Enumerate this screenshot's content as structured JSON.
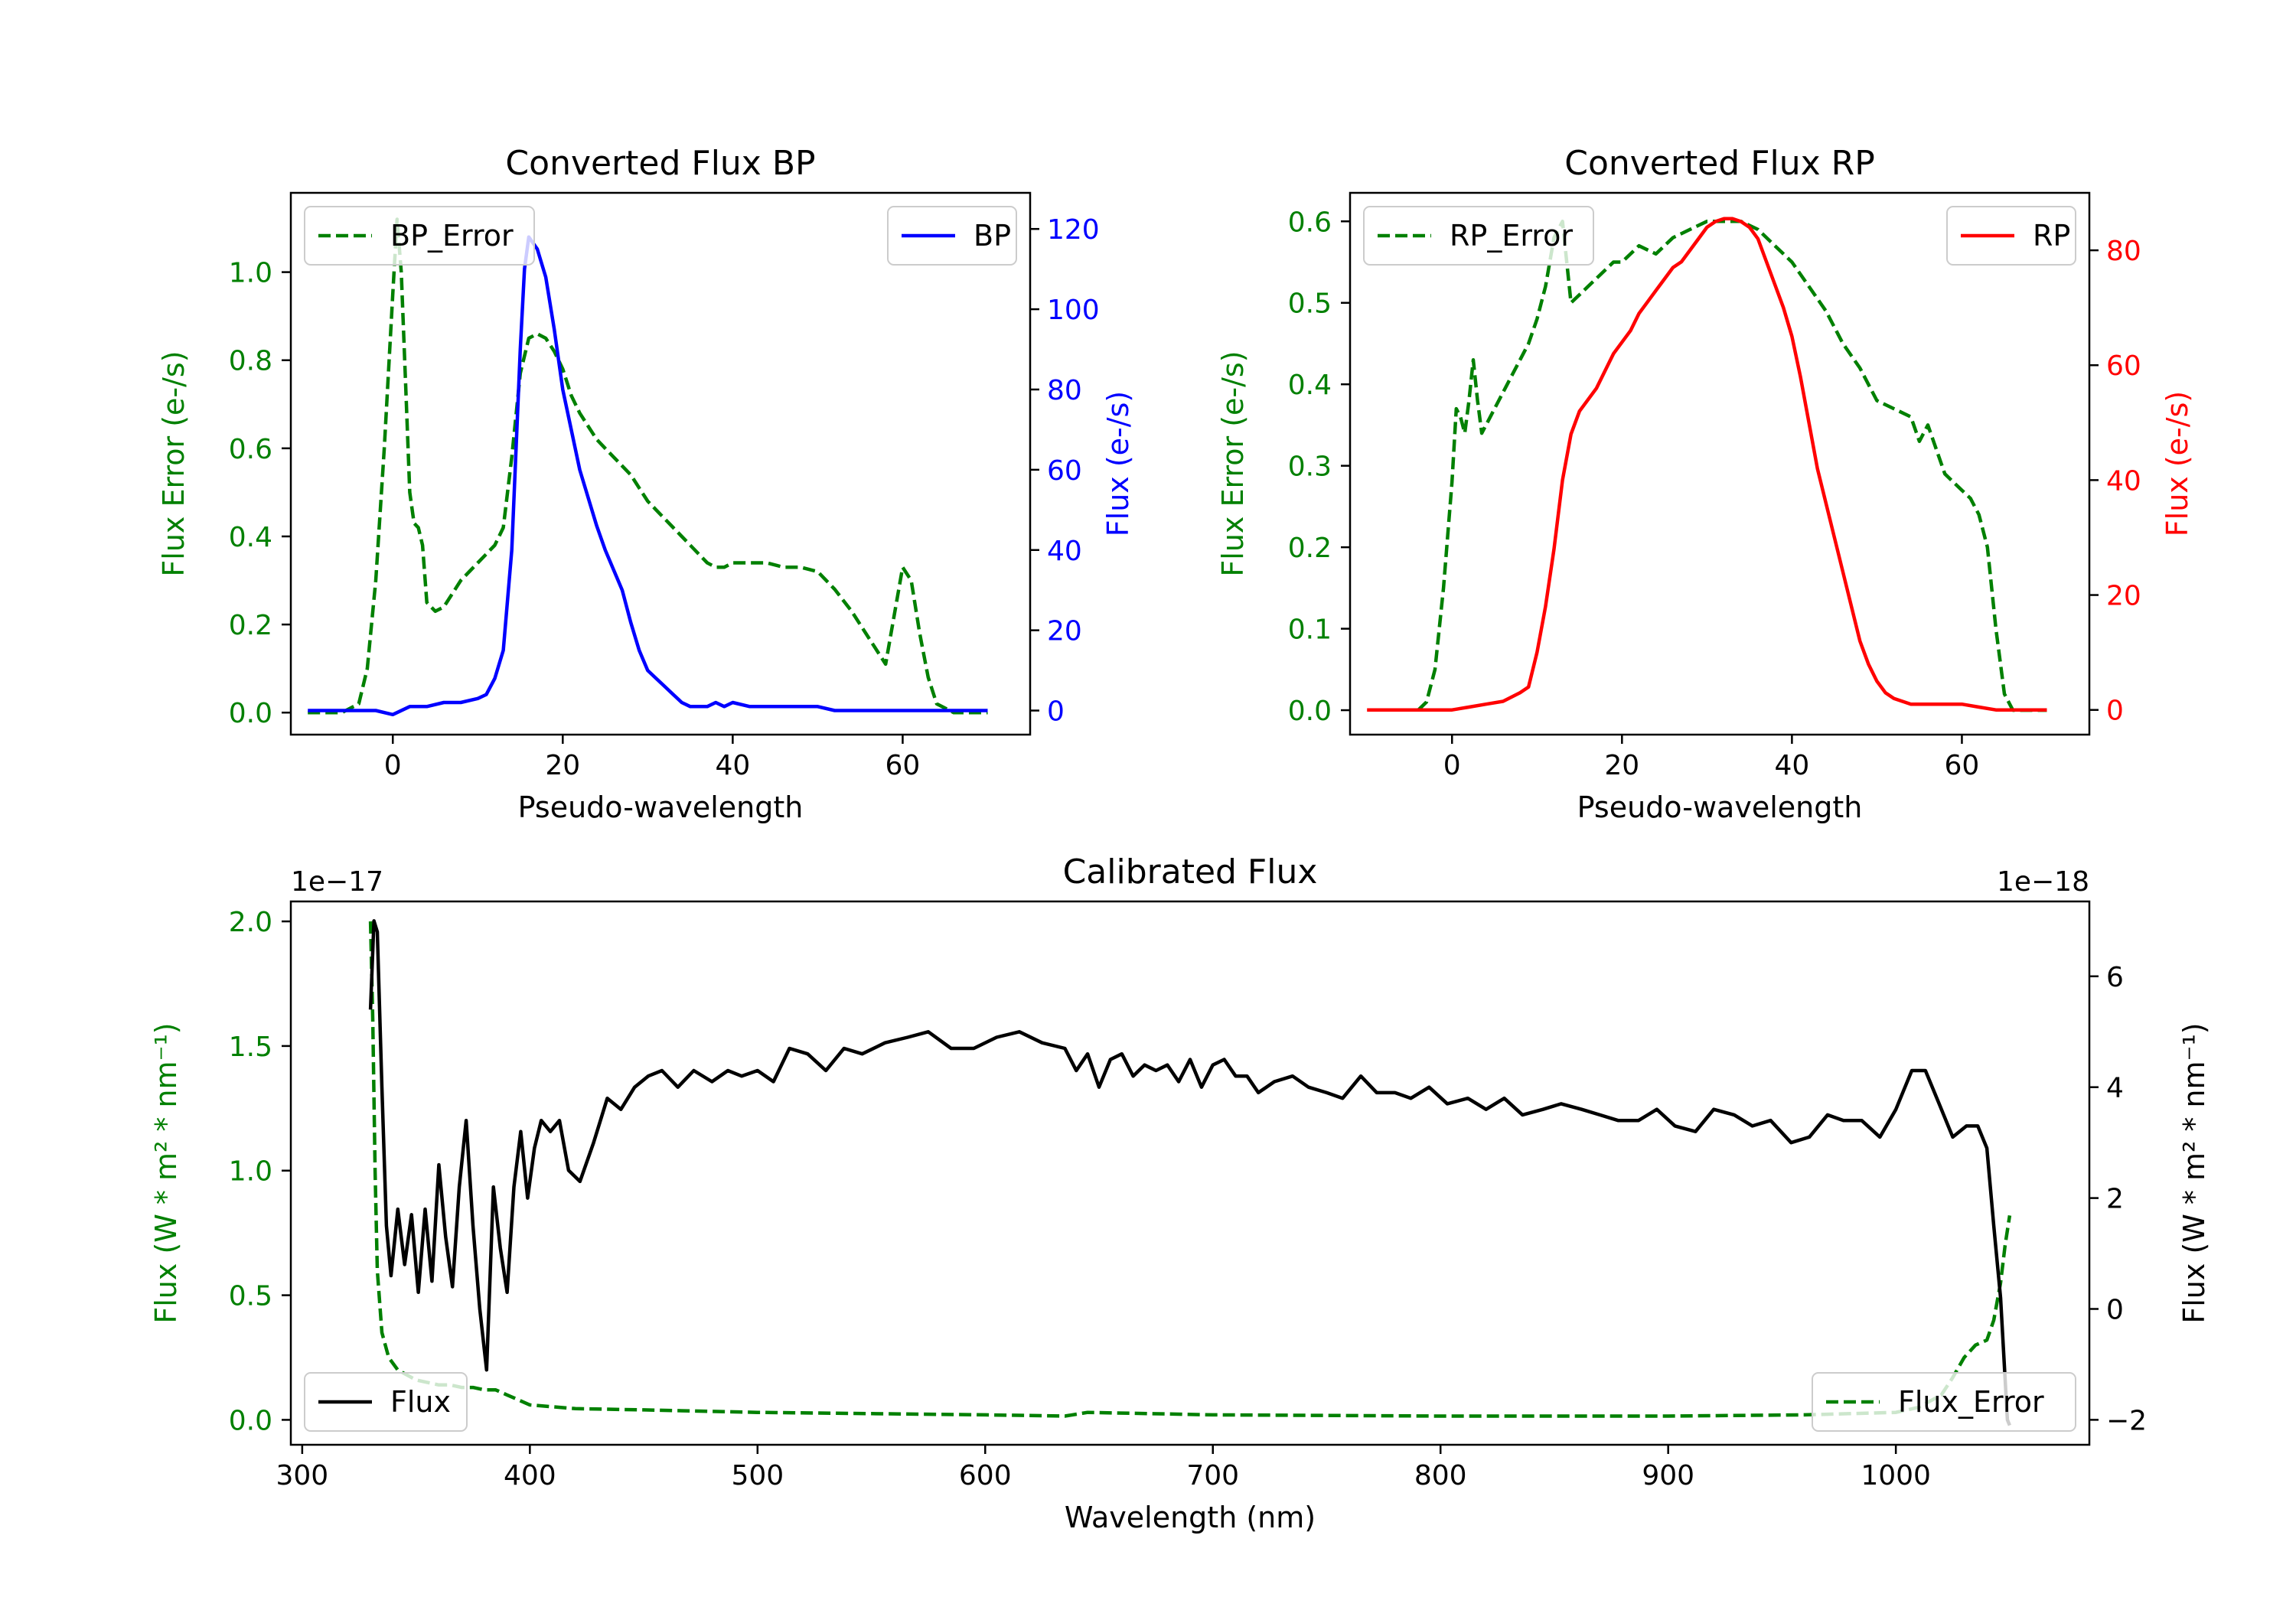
{
  "chart_data": [
    {
      "type": "line",
      "title": "Converted Flux BP",
      "xlabel": "Pseudo-wavelength",
      "xlim": [
        -12,
        75
      ],
      "x_ticks": [
        "0",
        "20",
        "40",
        "60"
      ],
      "x_tick_values": [
        0,
        20,
        40,
        60
      ],
      "left_axis": {
        "label": "Flux Error (e-/s)",
        "color": "#008000",
        "ylim": [
          -0.05,
          1.18
        ],
        "ticks": [
          "0.0",
          "0.2",
          "0.4",
          "0.6",
          "0.8",
          "1.0"
        ],
        "tick_values": [
          0,
          0.2,
          0.4,
          0.6,
          0.8,
          1.0
        ]
      },
      "right_axis": {
        "label": "Flux (e-/s)",
        "color": "#0000ff",
        "ylim": [
          -6,
          129
        ],
        "ticks": [
          "0",
          "20",
          "40",
          "60",
          "80",
          "100",
          "120"
        ],
        "tick_values": [
          0,
          20,
          40,
          60,
          80,
          100,
          120
        ]
      },
      "legends": [
        {
          "label": "BP_Error",
          "style": "dashed",
          "color": "#008000",
          "position": "upper left"
        },
        {
          "label": "BP",
          "style": "solid",
          "color": "#0000ff",
          "position": "upper right"
        }
      ],
      "series": [
        {
          "name": "BP_Error",
          "axis": "left",
          "style": "dashed",
          "color": "#008000",
          "x": [
            -10,
            -6,
            -4,
            -3,
            -2,
            -1,
            0,
            0.5,
            1,
            1.5,
            2,
            2.5,
            3,
            3.5,
            4,
            5,
            6,
            7,
            8,
            9,
            10,
            11,
            12,
            13,
            14,
            15,
            16,
            17,
            18,
            19,
            20,
            21,
            22,
            23,
            24,
            25,
            26,
            27,
            28,
            29,
            30,
            31,
            32,
            33,
            34,
            35,
            36,
            37,
            38,
            39,
            40,
            42,
            44,
            46,
            48,
            50,
            52,
            54,
            56,
            57,
            58,
            59,
            60,
            61,
            62,
            63,
            64,
            66,
            68,
            70
          ],
          "values": [
            0.0,
            0.0,
            0.02,
            0.1,
            0.3,
            0.6,
            0.95,
            1.12,
            1.0,
            0.75,
            0.5,
            0.43,
            0.42,
            0.38,
            0.25,
            0.23,
            0.24,
            0.27,
            0.3,
            0.32,
            0.34,
            0.36,
            0.38,
            0.42,
            0.58,
            0.77,
            0.85,
            0.86,
            0.85,
            0.82,
            0.78,
            0.72,
            0.68,
            0.65,
            0.62,
            0.6,
            0.58,
            0.56,
            0.54,
            0.51,
            0.48,
            0.46,
            0.44,
            0.42,
            0.4,
            0.38,
            0.36,
            0.34,
            0.33,
            0.33,
            0.34,
            0.34,
            0.34,
            0.33,
            0.33,
            0.32,
            0.28,
            0.23,
            0.17,
            0.14,
            0.11,
            0.22,
            0.33,
            0.3,
            0.18,
            0.08,
            0.02,
            0.0,
            0.0,
            0.0
          ]
        },
        {
          "name": "BP",
          "axis": "right",
          "style": "solid",
          "color": "#0000ff",
          "x": [
            -10,
            -6,
            -2,
            0,
            2,
            4,
            6,
            8,
            10,
            11,
            12,
            13,
            14,
            15,
            15.5,
            16,
            17,
            18,
            19,
            20,
            21,
            22,
            23,
            24,
            25,
            26,
            27,
            28,
            29,
            30,
            31,
            32,
            33,
            34,
            35,
            36,
            37,
            38,
            39,
            40,
            42,
            44,
            46,
            48,
            50,
            52,
            54,
            56,
            58,
            60,
            62,
            64,
            66,
            68,
            70
          ],
          "values": [
            0,
            0,
            0,
            -1,
            1,
            1,
            2,
            2,
            3,
            4,
            8,
            15,
            40,
            90,
            110,
            118,
            115,
            108,
            95,
            80,
            70,
            60,
            53,
            46,
            40,
            35,
            30,
            22,
            15,
            10,
            8,
            6,
            4,
            2,
            1,
            1,
            1,
            2,
            1,
            2,
            1,
            1,
            1,
            1,
            1,
            0,
            0,
            0,
            0,
            0,
            0,
            0,
            0,
            0,
            0
          ]
        }
      ]
    },
    {
      "type": "line",
      "title": "Converted Flux RP",
      "xlabel": "Pseudo-wavelength",
      "xlim": [
        -12,
        75
      ],
      "x_ticks": [
        "0",
        "20",
        "40",
        "60"
      ],
      "x_tick_values": [
        0,
        20,
        40,
        60
      ],
      "left_axis": {
        "label": "Flux Error (e-/s)",
        "color": "#008000",
        "ylim": [
          -0.03,
          0.635
        ],
        "ticks": [
          "0.0",
          "0.1",
          "0.2",
          "0.3",
          "0.4",
          "0.5",
          "0.6"
        ],
        "tick_values": [
          0,
          0.1,
          0.2,
          0.3,
          0.4,
          0.5,
          0.6
        ]
      },
      "right_axis": {
        "label": "Flux (e-/s)",
        "color": "#ff0000",
        "ylim": [
          -4.3,
          90
        ],
        "ticks": [
          "0",
          "20",
          "40",
          "60",
          "80"
        ],
        "tick_values": [
          0,
          20,
          40,
          60,
          80
        ]
      },
      "legends": [
        {
          "label": "RP_Error",
          "style": "dashed",
          "color": "#008000",
          "position": "upper left"
        },
        {
          "label": "RP",
          "style": "solid",
          "color": "#ff0000",
          "position": "upper right"
        }
      ],
      "series": [
        {
          "name": "RP_Error",
          "axis": "left",
          "style": "dashed",
          "color": "#008000",
          "x": [
            -4,
            -3,
            -2,
            -1,
            0,
            0.5,
            1,
            1.5,
            2,
            2.5,
            3,
            3.5,
            4,
            5,
            6,
            7,
            8,
            9,
            10,
            11,
            12,
            13,
            14,
            15,
            16,
            17,
            18,
            19,
            20,
            22,
            24,
            26,
            28,
            30,
            32,
            34,
            36,
            38,
            40,
            42,
            44,
            46,
            48,
            50,
            52,
            54,
            55,
            56,
            57,
            58,
            59,
            60,
            61,
            62,
            63,
            64,
            65,
            66,
            68,
            70
          ],
          "values": [
            0.0,
            0.01,
            0.05,
            0.15,
            0.28,
            0.37,
            0.36,
            0.34,
            0.38,
            0.43,
            0.38,
            0.34,
            0.35,
            0.37,
            0.39,
            0.41,
            0.43,
            0.45,
            0.48,
            0.52,
            0.58,
            0.6,
            0.5,
            0.51,
            0.52,
            0.53,
            0.54,
            0.55,
            0.55,
            0.57,
            0.56,
            0.58,
            0.59,
            0.6,
            0.6,
            0.6,
            0.59,
            0.57,
            0.55,
            0.52,
            0.49,
            0.45,
            0.42,
            0.38,
            0.37,
            0.36,
            0.33,
            0.35,
            0.32,
            0.29,
            0.28,
            0.27,
            0.26,
            0.24,
            0.2,
            0.1,
            0.02,
            0.0,
            0.0,
            0.0
          ]
        },
        {
          "name": "RP",
          "axis": "right",
          "style": "solid",
          "color": "#ff0000",
          "x": [
            -10,
            -4,
            0,
            2,
            4,
            6,
            8,
            9,
            10,
            11,
            12,
            13,
            14,
            15,
            16,
            17,
            18,
            19,
            20,
            21,
            22,
            23,
            24,
            25,
            26,
            27,
            28,
            29,
            30,
            31,
            32,
            33,
            34,
            35,
            36,
            37,
            38,
            39,
            40,
            41,
            42,
            43,
            44,
            45,
            46,
            47,
            48,
            49,
            50,
            51,
            52,
            53,
            54,
            56,
            58,
            60,
            62,
            64,
            66,
            68,
            70
          ],
          "values": [
            0,
            0,
            0,
            0.5,
            1,
            1.5,
            3,
            4,
            10,
            18,
            28,
            40,
            48,
            52,
            54,
            56,
            59,
            62,
            64,
            66,
            69,
            71,
            73,
            75,
            77,
            78,
            80,
            82,
            84,
            85,
            85.5,
            85.5,
            85,
            84,
            82,
            78,
            74,
            70,
            65,
            58,
            50,
            42,
            36,
            30,
            24,
            18,
            12,
            8,
            5,
            3,
            2,
            1.5,
            1,
            1,
            1,
            1,
            0.5,
            0,
            0,
            0,
            0
          ]
        }
      ]
    },
    {
      "type": "line",
      "title": "Calibrated Flux",
      "xlabel": "Wavelength (nm)",
      "xlim": [
        295,
        1085
      ],
      "x_ticks": [
        "300",
        "400",
        "500",
        "600",
        "700",
        "800",
        "900",
        "1000"
      ],
      "x_tick_values": [
        300,
        400,
        500,
        600,
        700,
        800,
        900,
        1000
      ],
      "left_axis": {
        "label": "Flux (W * m² * nm⁻¹)",
        "color": "#008000",
        "ylim": [
          -0.1,
          2.08
        ],
        "offset_text": "1e−17",
        "ticks": [
          "0.0",
          "0.5",
          "1.0",
          "1.5",
          "2.0"
        ],
        "tick_values": [
          0,
          0.5,
          1.0,
          1.5,
          2.0
        ]
      },
      "right_axis": {
        "label": "Flux (W * m² * nm⁻¹)",
        "color": "#000000",
        "ylim": [
          -2.45,
          7.35
        ],
        "offset_text": "1e−18",
        "ticks": [
          "−2",
          "0",
          "2",
          "4",
          "6"
        ],
        "tick_values": [
          -2,
          0,
          2,
          4,
          6
        ]
      },
      "legends": [
        {
          "label": "Flux",
          "style": "solid",
          "color": "#000000",
          "position": "lower left"
        },
        {
          "label": "Flux_Error",
          "style": "dashed",
          "color": "#008000",
          "position": "lower right"
        }
      ],
      "series": [
        {
          "name": "Flux_Error",
          "axis": "left",
          "style": "dashed",
          "color": "#008000",
          "x": [
            330,
            331,
            332,
            333,
            335,
            338,
            342,
            346,
            350,
            355,
            360,
            365,
            370,
            375,
            380,
            385,
            390,
            395,
            400,
            420,
            450,
            500,
            550,
            600,
            635,
            645,
            700,
            800,
            900,
            960,
            1000,
            1010,
            1020,
            1025,
            1030,
            1035,
            1040,
            1043,
            1046,
            1048,
            1050
          ],
          "values": [
            2.0,
            1.6,
            1.0,
            0.6,
            0.35,
            0.25,
            0.2,
            0.18,
            0.16,
            0.15,
            0.14,
            0.14,
            0.13,
            0.13,
            0.12,
            0.12,
            0.1,
            0.08,
            0.06,
            0.045,
            0.04,
            0.03,
            0.025,
            0.02,
            0.015,
            0.03,
            0.02,
            0.015,
            0.015,
            0.02,
            0.03,
            0.05,
            0.1,
            0.17,
            0.25,
            0.3,
            0.32,
            0.4,
            0.55,
            0.7,
            0.82
          ]
        },
        {
          "name": "Flux",
          "axis": "right",
          "style": "solid",
          "color": "#000000",
          "x": [
            330,
            331.5,
            333,
            335,
            337,
            339,
            342,
            345,
            348,
            351,
            354,
            357,
            360,
            363,
            366,
            369,
            372,
            375,
            378,
            381,
            384,
            387,
            390,
            393,
            396,
            399,
            402,
            405,
            409,
            413,
            417,
            422,
            428,
            434,
            440,
            446,
            452,
            458,
            465,
            472,
            480,
            487,
            493,
            500,
            507,
            514,
            522,
            530,
            538,
            546,
            556,
            566,
            575,
            585,
            595,
            605,
            615,
            625,
            635,
            640,
            645,
            650,
            655,
            660,
            665,
            670,
            675,
            680,
            685,
            690,
            695,
            700,
            705,
            710,
            715,
            720,
            727,
            735,
            742,
            750,
            757,
            765,
            772,
            780,
            787,
            795,
            803,
            812,
            820,
            828,
            836,
            845,
            853,
            862,
            870,
            878,
            887,
            895,
            903,
            912,
            920,
            929,
            937,
            945,
            954,
            962,
            970,
            977,
            985,
            993,
            1000,
            1007,
            1013,
            1019,
            1025,
            1031,
            1036,
            1040,
            1043,
            1046,
            1049,
            1050
          ],
          "values": [
            5.4,
            7.0,
            6.8,
            4.0,
            1.5,
            0.6,
            1.8,
            0.8,
            1.7,
            0.3,
            1.8,
            0.5,
            2.6,
            1.3,
            0.4,
            2.2,
            3.4,
            1.5,
            0.0,
            -1.1,
            2.2,
            1.1,
            0.3,
            2.2,
            3.2,
            2.0,
            2.9,
            3.4,
            3.2,
            3.4,
            2.5,
            2.3,
            3.0,
            3.8,
            3.6,
            4.0,
            4.2,
            4.3,
            4.0,
            4.3,
            4.1,
            4.3,
            4.2,
            4.3,
            4.1,
            4.7,
            4.6,
            4.3,
            4.7,
            4.6,
            4.8,
            4.9,
            5.0,
            4.7,
            4.7,
            4.9,
            5.0,
            4.8,
            4.7,
            4.3,
            4.6,
            4.0,
            4.5,
            4.6,
            4.2,
            4.4,
            4.3,
            4.4,
            4.1,
            4.5,
            4.0,
            4.4,
            4.5,
            4.2,
            4.2,
            3.9,
            4.1,
            4.2,
            4.0,
            3.9,
            3.8,
            4.2,
            3.9,
            3.9,
            3.8,
            4.0,
            3.7,
            3.8,
            3.6,
            3.8,
            3.5,
            3.6,
            3.7,
            3.6,
            3.5,
            3.4,
            3.4,
            3.6,
            3.3,
            3.2,
            3.6,
            3.5,
            3.3,
            3.4,
            3.0,
            3.1,
            3.5,
            3.4,
            3.4,
            3.1,
            3.6,
            4.3,
            4.3,
            3.7,
            3.1,
            3.3,
            3.3,
            2.9,
            1.5,
            0.2,
            -2.0,
            -2.1
          ]
        }
      ]
    }
  ]
}
